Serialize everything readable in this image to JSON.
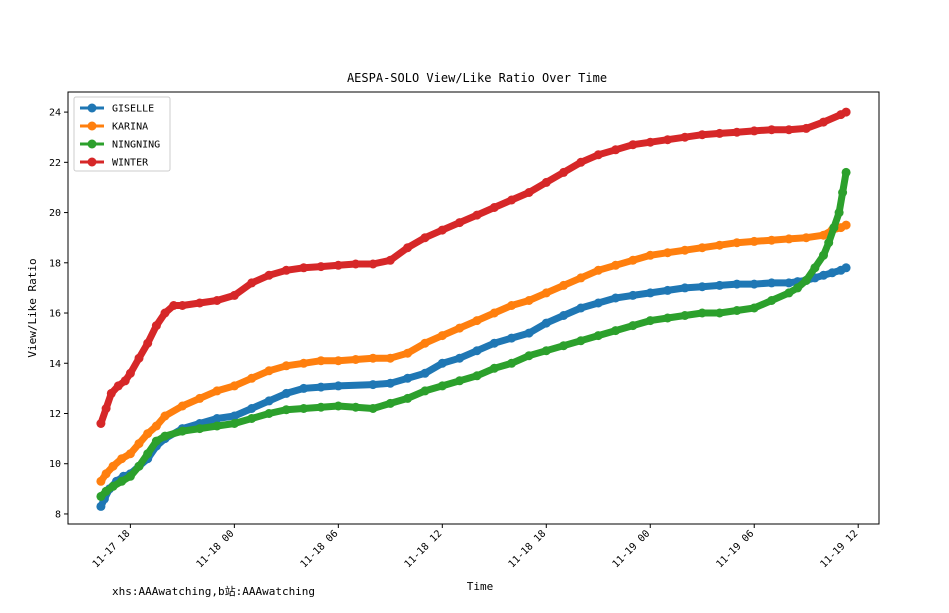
{
  "chart_data": {
    "type": "line",
    "title": "AESPA-SOLO View/Like Ratio Over Time",
    "xlabel": "Time",
    "ylabel": "View/Like Ratio",
    "x_ticks": [
      "11-17 18",
      "11-18 00",
      "11-18 06",
      "11-18 12",
      "11-18 18",
      "11-19 00",
      "11-19 06",
      "11-19 12"
    ],
    "x_tick_hours": [
      0,
      6,
      12,
      18,
      24,
      30,
      36,
      42
    ],
    "xlim": [
      -3.6,
      43.2
    ],
    "ylim": [
      7.6,
      24.8
    ],
    "yticks": [
      8,
      10,
      12,
      14,
      16,
      18,
      20,
      22,
      24
    ],
    "legend": "top-left",
    "series": [
      {
        "name": "GISELLE",
        "color": "#1f77b4",
        "x": [
          -1.7,
          -1.5,
          -1.2,
          -0.8,
          -0.4,
          0,
          0.5,
          1,
          1.5,
          2,
          3,
          4,
          5,
          6,
          7,
          8,
          9,
          10,
          11,
          12,
          14,
          15,
          16,
          17,
          18,
          19,
          20,
          21,
          22,
          23,
          24,
          25,
          26,
          27,
          28,
          29,
          30,
          31,
          32,
          33,
          34,
          35,
          36,
          37,
          38,
          38.5,
          39,
          39.5,
          40,
          40.5,
          41,
          41.3
        ],
        "y": [
          8.3,
          8.6,
          9.0,
          9.3,
          9.5,
          9.6,
          9.9,
          10.2,
          10.7,
          11.0,
          11.4,
          11.6,
          11.8,
          11.9,
          12.2,
          12.5,
          12.8,
          13.0,
          13.05,
          13.1,
          13.15,
          13.2,
          13.4,
          13.6,
          14.0,
          14.2,
          14.5,
          14.8,
          15.0,
          15.2,
          15.6,
          15.9,
          16.2,
          16.4,
          16.6,
          16.7,
          16.8,
          16.9,
          17.0,
          17.05,
          17.1,
          17.15,
          17.15,
          17.2,
          17.2,
          17.25,
          17.3,
          17.4,
          17.5,
          17.6,
          17.7,
          17.8
        ]
      },
      {
        "name": "KARINA",
        "color": "#ff7f0e",
        "x": [
          -1.7,
          -1.4,
          -1,
          -0.5,
          0,
          0.5,
          1,
          1.5,
          2,
          3,
          4,
          5,
          6,
          7,
          8,
          9,
          10,
          11,
          12,
          13,
          14,
          15,
          16,
          17,
          18,
          19,
          20,
          21,
          22,
          23,
          24,
          25,
          26,
          27,
          28,
          29,
          30,
          31,
          32,
          33,
          34,
          35,
          36,
          37,
          38,
          39,
          40,
          40.5,
          41,
          41.3
        ],
        "y": [
          9.3,
          9.6,
          9.9,
          10.2,
          10.4,
          10.8,
          11.2,
          11.5,
          11.9,
          12.3,
          12.6,
          12.9,
          13.1,
          13.4,
          13.7,
          13.9,
          14.0,
          14.1,
          14.1,
          14.15,
          14.2,
          14.2,
          14.4,
          14.8,
          15.1,
          15.4,
          15.7,
          16.0,
          16.3,
          16.5,
          16.8,
          17.1,
          17.4,
          17.7,
          17.9,
          18.1,
          18.3,
          18.4,
          18.5,
          18.6,
          18.7,
          18.8,
          18.85,
          18.9,
          18.95,
          19.0,
          19.1,
          19.3,
          19.4,
          19.5
        ]
      },
      {
        "name": "NINGNING",
        "color": "#2ca02c",
        "x": [
          -1.7,
          -1.4,
          -1,
          -0.5,
          0,
          0.5,
          1,
          1.5,
          2,
          3,
          4,
          5,
          6,
          7,
          8,
          9,
          10,
          11,
          12,
          13,
          14,
          15,
          16,
          17,
          18,
          19,
          20,
          21,
          22,
          23,
          24,
          25,
          26,
          27,
          28,
          29,
          30,
          31,
          32,
          33,
          34,
          35,
          36,
          37,
          38,
          38.5,
          39,
          39.5,
          40,
          40.3,
          40.6,
          40.9,
          41.1,
          41.3
        ],
        "y": [
          8.7,
          8.9,
          9.1,
          9.3,
          9.5,
          9.9,
          10.4,
          10.9,
          11.1,
          11.3,
          11.4,
          11.5,
          11.6,
          11.8,
          12.0,
          12.15,
          12.2,
          12.25,
          12.3,
          12.25,
          12.2,
          12.4,
          12.6,
          12.9,
          13.1,
          13.3,
          13.5,
          13.8,
          14.0,
          14.3,
          14.5,
          14.7,
          14.9,
          15.1,
          15.3,
          15.5,
          15.7,
          15.8,
          15.9,
          16.0,
          16.0,
          16.1,
          16.2,
          16.5,
          16.8,
          17.0,
          17.3,
          17.8,
          18.3,
          18.8,
          19.4,
          20.0,
          20.8,
          21.6
        ]
      },
      {
        "name": "WINTER",
        "color": "#d62728",
        "x": [
          -1.7,
          -1.4,
          -1.1,
          -0.7,
          -0.3,
          0,
          0.5,
          1,
          1.5,
          2,
          2.5,
          3,
          4,
          5,
          6,
          7,
          8,
          9,
          10,
          11,
          12,
          13,
          14,
          15,
          16,
          17,
          18,
          19,
          20,
          21,
          22,
          23,
          24,
          25,
          26,
          27,
          28,
          29,
          30,
          31,
          32,
          33,
          34,
          35,
          36,
          37,
          38,
          39,
          40,
          41,
          41.3
        ],
        "y": [
          11.6,
          12.2,
          12.8,
          13.1,
          13.3,
          13.6,
          14.2,
          14.8,
          15.5,
          16.0,
          16.3,
          16.3,
          16.4,
          16.5,
          16.7,
          17.2,
          17.5,
          17.7,
          17.8,
          17.85,
          17.9,
          17.95,
          17.95,
          18.1,
          18.6,
          19.0,
          19.3,
          19.6,
          19.9,
          20.2,
          20.5,
          20.8,
          21.2,
          21.6,
          22.0,
          22.3,
          22.5,
          22.7,
          22.8,
          22.9,
          23.0,
          23.1,
          23.15,
          23.2,
          23.25,
          23.3,
          23.3,
          23.35,
          23.6,
          23.9,
          24.0
        ]
      }
    ]
  },
  "watermark": "xhs:AAAwatching,b站:AAAwatching"
}
